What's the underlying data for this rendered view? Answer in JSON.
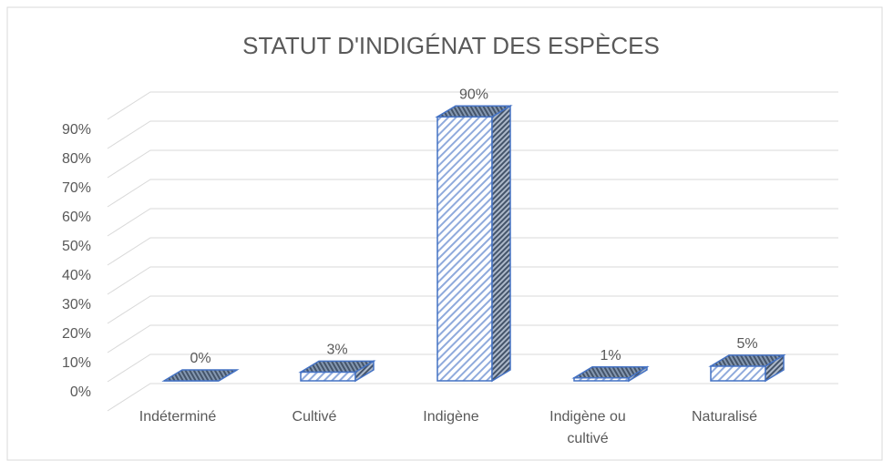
{
  "chart_data": {
    "type": "bar3d",
    "title": "STATUT D'INDIGÉNAT DES ESPÈCES",
    "categories": [
      "Indéterminé",
      "Cultivé",
      "Indigène",
      "Indigène ou cultivé",
      "Naturalisé"
    ],
    "values": [
      0,
      3,
      90,
      1,
      5
    ],
    "value_labels": [
      "0%",
      "3%",
      "90%",
      "1%",
      "5%"
    ],
    "color": "#4472c4",
    "ylim": [
      0,
      100
    ],
    "yticks": [
      {
        "value": 0,
        "label": "0%"
      },
      {
        "value": 10,
        "label": "10%"
      },
      {
        "value": 20,
        "label": "20%"
      },
      {
        "value": 30,
        "label": "30%"
      },
      {
        "value": 40,
        "label": "40%"
      },
      {
        "value": 50,
        "label": "50%"
      },
      {
        "value": 60,
        "label": "60%"
      },
      {
        "value": 70,
        "label": "70%"
      },
      {
        "value": 80,
        "label": "80%"
      },
      {
        "value": 90,
        "label": "90%"
      }
    ],
    "grid": true
  }
}
